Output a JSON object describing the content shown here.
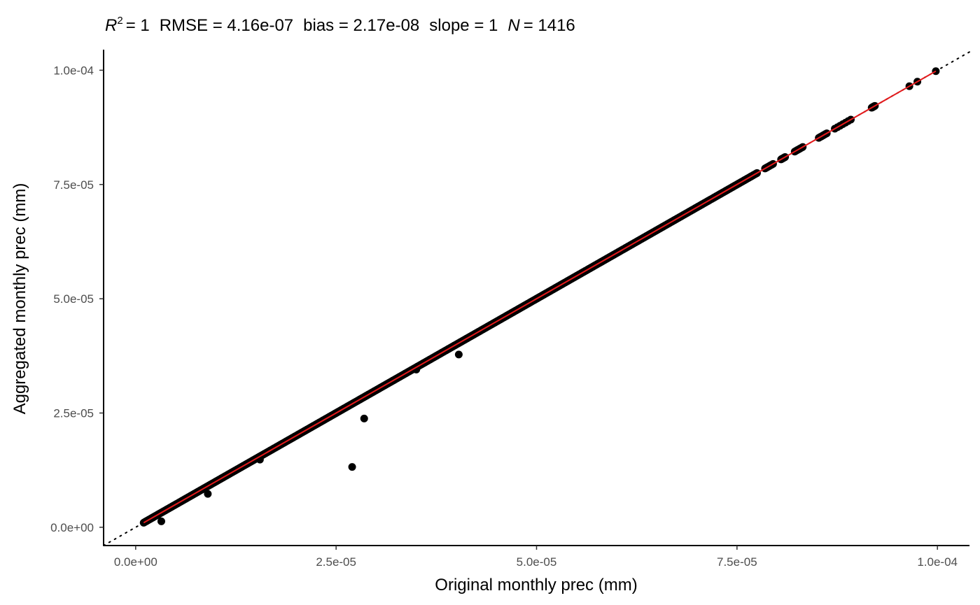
{
  "chart_data": {
    "type": "scatter",
    "stats": {
      "r2_symbol": "R",
      "r2_exponent": "2",
      "r2_value": "= 1",
      "rmse_text": "RMSE = 4.16e-07",
      "bias_text": "bias = 2.17e-08",
      "slope_text": "slope = 1",
      "n_symbol": "N",
      "n_value": "= 1416"
    },
    "xlabel": "Original monthly prec (mm)",
    "ylabel": "Aggregated monthly prec (mm)",
    "xlim": [
      -4e-06,
      0.000104
    ],
    "ylim": [
      -4e-06,
      0.0001045
    ],
    "x_ticks": [
      0,
      2.5e-05,
      5e-05,
      7.5e-05,
      0.0001
    ],
    "x_tick_labels": [
      "0.0e+00",
      "2.5e-05",
      "5.0e-05",
      "7.5e-05",
      "1.0e-04"
    ],
    "y_ticks": [
      0,
      2.5e-05,
      5e-05,
      7.5e-05,
      0.0001
    ],
    "y_tick_labels": [
      "0.0e+00",
      "2.5e-05",
      "5.0e-05",
      "7.5e-05",
      "1.0e-04"
    ],
    "grid": false,
    "reference_line": {
      "style": "dotted",
      "color": "#000000",
      "slope": 1,
      "intercept": 0
    },
    "fit_line": {
      "color": "#e41a1c",
      "x_range": [
        1e-06,
        9.98e-05
      ],
      "slope": 1,
      "intercept": 0
    },
    "point_color": "#000000",
    "points": {
      "diagonal_dense_range": [
        1e-06,
        7.75e-05
      ],
      "diagonal_clusters": [
        [
          7.85e-05,
          7.95e-05
        ],
        [
          8.05e-05,
          8.1e-05
        ],
        [
          8.22e-05,
          8.32e-05
        ],
        [
          8.52e-05,
          8.62e-05
        ],
        [
          8.72e-05,
          8.92e-05
        ],
        [
          9.18e-05,
          9.22e-05
        ]
      ],
      "diagonal_points": [
        9.65e-05,
        9.75e-05,
        9.98e-05
      ],
      "outliers": [
        {
          "x": 3.2e-06,
          "y": 1.3e-06
        },
        {
          "x": 9e-06,
          "y": 7.3e-06
        },
        {
          "x": 1.55e-05,
          "y": 1.48e-05
        },
        {
          "x": 3.5e-05,
          "y": 3.45e-05
        },
        {
          "x": 2.7e-05,
          "y": 1.32e-05
        },
        {
          "x": 2.85e-05,
          "y": 2.38e-05
        },
        {
          "x": 4.03e-05,
          "y": 3.78e-05
        }
      ]
    }
  }
}
